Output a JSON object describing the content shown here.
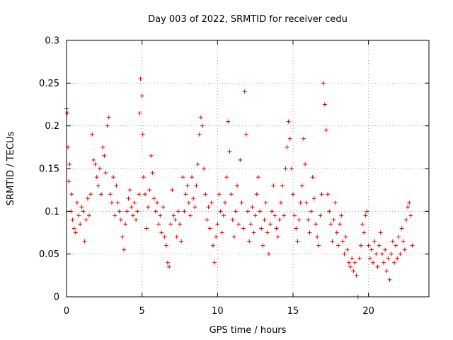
{
  "chart_data": {
    "type": "scatter",
    "title": "Day 003 of 2022, SRMTID for receiver cedu",
    "xlabel": "GPS time / hours",
    "ylabel": "SRMTID / TECUs",
    "xlim": [
      0,
      24
    ],
    "ylim": [
      0,
      0.3
    ],
    "x_ticks": [
      0,
      5,
      10,
      15,
      20
    ],
    "x_tick_labels": [
      "0",
      "5",
      "10",
      "15",
      "20"
    ],
    "y_ticks": [
      0,
      0.05,
      0.1,
      0.15,
      0.2,
      0.25,
      0.3
    ],
    "y_tick_labels": [
      "0",
      "0.05",
      "0.1",
      "0.15",
      "0.2",
      "0.25",
      "0.3"
    ],
    "grid": true,
    "marker": "plus",
    "color": "#e00000",
    "series": [
      {
        "name": "SRMTID",
        "points": [
          [
            0.0,
            0.22
          ],
          [
            0.05,
            0.215
          ],
          [
            0.1,
            0.175
          ],
          [
            0.15,
            0.135
          ],
          [
            0.2,
            0.155
          ],
          [
            0.3,
            0.1
          ],
          [
            0.35,
            0.12
          ],
          [
            0.4,
            0.09
          ],
          [
            0.5,
            0.08
          ],
          [
            0.6,
            0.075
          ],
          [
            0.7,
            0.11
          ],
          [
            0.8,
            0.095
          ],
          [
            0.9,
            0.085
          ],
          [
            1.0,
            0.105
          ],
          [
            1.1,
            0.1
          ],
          [
            1.2,
            0.065
          ],
          [
            1.3,
            0.09
          ],
          [
            1.4,
            0.115
          ],
          [
            1.5,
            0.095
          ],
          [
            1.6,
            0.12
          ],
          [
            1.7,
            0.19
          ],
          [
            1.8,
            0.16
          ],
          [
            1.9,
            0.155
          ],
          [
            2.0,
            0.14
          ],
          [
            2.1,
            0.13
          ],
          [
            2.2,
            0.15
          ],
          [
            2.3,
            0.12
          ],
          [
            2.4,
            0.175
          ],
          [
            2.5,
            0.165
          ],
          [
            2.6,
            0.145
          ],
          [
            2.7,
            0.2
          ],
          [
            2.8,
            0.21
          ],
          [
            2.9,
            0.12
          ],
          [
            3.0,
            0.11
          ],
          [
            3.1,
            0.14
          ],
          [
            3.2,
            0.095
          ],
          [
            3.3,
            0.13
          ],
          [
            3.4,
            0.11
          ],
          [
            3.5,
            0.1
          ],
          [
            3.6,
            0.09
          ],
          [
            3.7,
            0.07
          ],
          [
            3.8,
            0.055
          ],
          [
            3.9,
            0.085
          ],
          [
            4.0,
            0.1
          ],
          [
            4.1,
            0.115
          ],
          [
            4.2,
            0.125
          ],
          [
            4.3,
            0.105
          ],
          [
            4.4,
            0.095
          ],
          [
            4.5,
            0.11
          ],
          [
            4.6,
            0.09
          ],
          [
            4.7,
            0.1
          ],
          [
            4.8,
            0.12
          ],
          [
            4.85,
            0.215
          ],
          [
            4.9,
            0.255
          ],
          [
            5.0,
            0.235
          ],
          [
            5.05,
            0.19
          ],
          [
            5.1,
            0.14
          ],
          [
            5.2,
            0.12
          ],
          [
            5.3,
            0.08
          ],
          [
            5.4,
            0.105
          ],
          [
            5.5,
            0.125
          ],
          [
            5.6,
            0.165
          ],
          [
            5.7,
            0.145
          ],
          [
            5.8,
            0.115
          ],
          [
            5.9,
            0.1
          ],
          [
            6.0,
            0.11
          ],
          [
            6.1,
            0.085
          ],
          [
            6.2,
            0.095
          ],
          [
            6.3,
            0.075
          ],
          [
            6.4,
            0.105
          ],
          [
            6.5,
            0.07
          ],
          [
            6.6,
            0.06
          ],
          [
            6.7,
            0.04
          ],
          [
            6.8,
            0.035
          ],
          [
            6.9,
            0.085
          ],
          [
            7.0,
            0.125
          ],
          [
            7.1,
            0.095
          ],
          [
            7.2,
            0.09
          ],
          [
            7.3,
            0.07
          ],
          [
            7.4,
            0.1
          ],
          [
            7.5,
            0.085
          ],
          [
            7.6,
            0.065
          ],
          [
            7.7,
            0.14
          ],
          [
            7.8,
            0.1
          ],
          [
            7.9,
            0.12
          ],
          [
            8.0,
            0.13
          ],
          [
            8.1,
            0.11
          ],
          [
            8.2,
            0.095
          ],
          [
            8.3,
            0.14
          ],
          [
            8.4,
            0.115
          ],
          [
            8.5,
            0.105
          ],
          [
            8.6,
            0.13
          ],
          [
            8.7,
            0.155
          ],
          [
            8.8,
            0.19
          ],
          [
            8.9,
            0.21
          ],
          [
            9.0,
            0.2
          ],
          [
            9.1,
            0.15
          ],
          [
            9.2,
            0.12
          ],
          [
            9.3,
            0.09
          ],
          [
            9.4,
            0.105
          ],
          [
            9.5,
            0.08
          ],
          [
            9.6,
            0.11
          ],
          [
            9.7,
            0.06
          ],
          [
            9.8,
            0.04
          ],
          [
            9.9,
            0.07
          ],
          [
            10.0,
            0.085
          ],
          [
            10.1,
            0.12
          ],
          [
            10.2,
            0.1
          ],
          [
            10.3,
            0.075
          ],
          [
            10.4,
            0.095
          ],
          [
            10.5,
            0.11
          ],
          [
            10.6,
            0.14
          ],
          [
            10.7,
            0.205
          ],
          [
            10.8,
            0.17
          ],
          [
            10.9,
            0.12
          ],
          [
            11.0,
            0.09
          ],
          [
            11.1,
            0.07
          ],
          [
            11.2,
            0.1
          ],
          [
            11.3,
            0.13
          ],
          [
            11.4,
            0.085
          ],
          [
            11.5,
            0.16
          ],
          [
            11.6,
            0.11
          ],
          [
            11.7,
            0.08
          ],
          [
            11.8,
            0.24
          ],
          [
            11.9,
            0.19
          ],
          [
            12.0,
            0.1
          ],
          [
            12.1,
            0.065
          ],
          [
            12.2,
            0.085
          ],
          [
            12.3,
            0.105
          ],
          [
            12.4,
            0.075
          ],
          [
            12.5,
            0.095
          ],
          [
            12.6,
            0.12
          ],
          [
            12.7,
            0.14
          ],
          [
            12.8,
            0.1
          ],
          [
            12.9,
            0.08
          ],
          [
            13.0,
            0.06
          ],
          [
            13.1,
            0.09
          ],
          [
            13.2,
            0.11
          ],
          [
            13.3,
            0.075
          ],
          [
            13.4,
            0.05
          ],
          [
            13.5,
            0.085
          ],
          [
            13.6,
            0.1
          ],
          [
            13.7,
            0.13
          ],
          [
            13.8,
            0.095
          ],
          [
            13.9,
            0.08
          ],
          [
            14.0,
            0.07
          ],
          [
            14.1,
            0.09
          ],
          [
            14.2,
            0.11
          ],
          [
            14.3,
            0.13
          ],
          [
            14.4,
            0.095
          ],
          [
            14.5,
            0.15
          ],
          [
            14.6,
            0.175
          ],
          [
            14.7,
            0.205
          ],
          [
            14.8,
            0.185
          ],
          [
            14.9,
            0.15
          ],
          [
            15.0,
            0.12
          ],
          [
            15.1,
            0.095
          ],
          [
            15.2,
            0.08
          ],
          [
            15.3,
            0.065
          ],
          [
            15.4,
            0.09
          ],
          [
            15.5,
            0.11
          ],
          [
            15.6,
            0.13
          ],
          [
            15.7,
            0.185
          ],
          [
            15.8,
            0.155
          ],
          [
            15.9,
            0.11
          ],
          [
            16.0,
            0.09
          ],
          [
            16.1,
            0.075
          ],
          [
            16.2,
            0.1
          ],
          [
            16.3,
            0.14
          ],
          [
            16.4,
            0.115
          ],
          [
            16.5,
            0.085
          ],
          [
            16.6,
            0.07
          ],
          [
            16.7,
            0.06
          ],
          [
            16.8,
            0.095
          ],
          [
            16.9,
            0.12
          ],
          [
            17.0,
            0.25
          ],
          [
            17.1,
            0.225
          ],
          [
            17.2,
            0.195
          ],
          [
            17.3,
            0.12
          ],
          [
            17.4,
            0.1
          ],
          [
            17.5,
            0.085
          ],
          [
            17.6,
            0.065
          ],
          [
            17.7,
            0.09
          ],
          [
            17.8,
            0.11
          ],
          [
            17.9,
            0.075
          ],
          [
            18.0,
            0.06
          ],
          [
            18.1,
            0.085
          ],
          [
            18.2,
            0.095
          ],
          [
            18.3,
            0.065
          ],
          [
            18.4,
            0.05
          ],
          [
            18.5,
            0.07
          ],
          [
            18.6,
            0.055
          ],
          [
            18.7,
            0.04
          ],
          [
            18.8,
            0.035
          ],
          [
            18.9,
            0.045
          ],
          [
            19.0,
            0.03
          ],
          [
            19.1,
            0.04
          ],
          [
            19.2,
            0.025
          ],
          [
            19.3,
            0.0
          ],
          [
            19.4,
            0.045
          ],
          [
            19.5,
            0.06
          ],
          [
            19.6,
            0.085
          ],
          [
            19.7,
            0.075
          ],
          [
            19.8,
            0.095
          ],
          [
            19.9,
            0.1
          ],
          [
            20.0,
            0.06
          ],
          [
            20.1,
            0.045
          ],
          [
            20.2,
            0.055
          ],
          [
            20.3,
            0.04
          ],
          [
            20.4,
            0.065
          ],
          [
            20.5,
            0.05
          ],
          [
            20.6,
            0.035
          ],
          [
            20.7,
            0.06
          ],
          [
            20.8,
            0.075
          ],
          [
            20.9,
            0.05
          ],
          [
            21.0,
            0.04
          ],
          [
            21.1,
            0.055
          ],
          [
            21.2,
            0.03
          ],
          [
            21.3,
            0.045
          ],
          [
            21.4,
            0.02
          ],
          [
            21.5,
            0.05
          ],
          [
            21.6,
            0.065
          ],
          [
            21.7,
            0.04
          ],
          [
            21.8,
            0.06
          ],
          [
            21.9,
            0.045
          ],
          [
            22.0,
            0.07
          ],
          [
            22.1,
            0.05
          ],
          [
            22.2,
            0.08
          ],
          [
            22.3,
            0.065
          ],
          [
            22.4,
            0.055
          ],
          [
            22.5,
            0.09
          ],
          [
            22.6,
            0.105
          ],
          [
            22.7,
            0.11
          ],
          [
            22.8,
            0.095
          ],
          [
            22.9,
            0.06
          ]
        ]
      }
    ]
  }
}
